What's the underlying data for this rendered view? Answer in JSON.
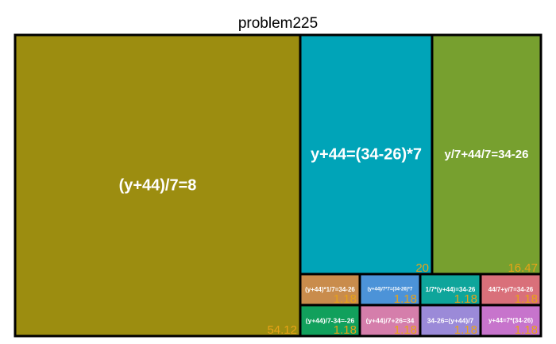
{
  "chart_data": {
    "type": "treemap",
    "title": "problem225",
    "value_color": "#e8a317",
    "label_color": "#ffffff",
    "items": [
      {
        "label": "(y+44)/7=8",
        "value": 54.12,
        "color": "#9c8d10"
      },
      {
        "label": "y+44=(34-26)*7",
        "value": 20,
        "color": "#00a4b8"
      },
      {
        "label": "y/7+44/7=34-26",
        "value": 16.47,
        "color": "#77a02f"
      },
      {
        "label": "(y+44)*1/7=34-26",
        "value": 1.18,
        "color": "#c98c4c"
      },
      {
        "label": "(y+44)/7*7=(34-26)*7",
        "value": 1.18,
        "color": "#4c93d8"
      },
      {
        "label": "1/7*(y+44)=34-26",
        "value": 1.18,
        "color": "#0ea59b"
      },
      {
        "label": "44/7+y/7=34-26",
        "value": 1.18,
        "color": "#d9707a"
      },
      {
        "label": "(y+44)/7-34=-26",
        "value": 1.18,
        "color": "#11a05c"
      },
      {
        "label": "(y+44)/7+26=34",
        "value": 1.18,
        "color": "#d57eab"
      },
      {
        "label": "34-26=(y+44)/7",
        "value": 1.18,
        "color": "#9b8ad8"
      },
      {
        "label": "y+44=7*(34-26)",
        "value": 1.18,
        "color": "#c774cc"
      }
    ]
  }
}
